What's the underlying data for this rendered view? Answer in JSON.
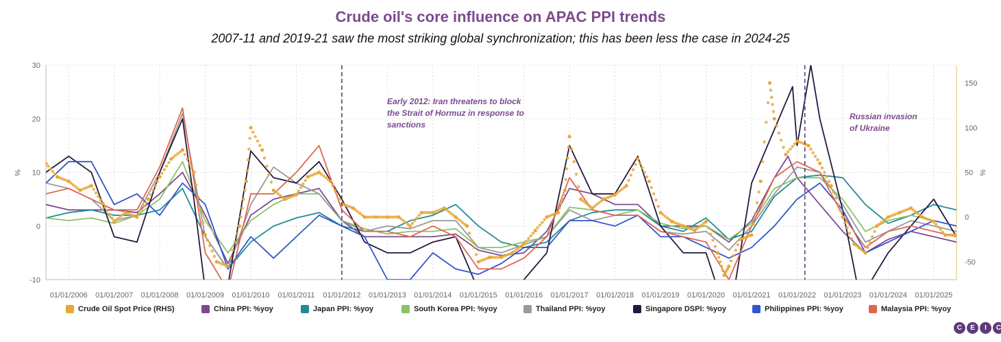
{
  "title": "Crude oil's core influence on APAC PPI trends",
  "subtitle": "2007-11 and 2019-21 saw the most striking global synchronization; this has been less the case in 2024-25",
  "chart_data": {
    "type": "line",
    "left_axis": {
      "unit": "%",
      "range": [
        -10,
        30
      ],
      "ticks": [
        -10,
        0,
        10,
        20,
        30
      ]
    },
    "right_axis": {
      "unit": "%",
      "range": [
        -70,
        170
      ],
      "ticks": [
        -50,
        0,
        50,
        100,
        150
      ]
    },
    "x_range": [
      2005.5,
      2025.5
    ],
    "x_ticks": [
      "01/01/2006",
      "01/01/2007",
      "01/01/2008",
      "01/01/2009",
      "01/01/2010",
      "01/01/2011",
      "01/01/2012",
      "01/01/2013",
      "01/01/2014",
      "01/01/2015",
      "01/01/2016",
      "01/01/2017",
      "01/01/2018",
      "01/01/2019",
      "01/01/2020",
      "01/01/2021",
      "01/01/2022",
      "01/01/2023",
      "01/01/2024",
      "01/01/2025"
    ],
    "grid": true,
    "annotations": [
      {
        "x": 2012.0,
        "text": "Early 2012: Iran threatens to block the Strait of Hormuz in response to sanctions"
      },
      {
        "x": 2022.17,
        "text": "Russian invasion of Ukraine"
      }
    ],
    "series": [
      {
        "name": "Crude Oil Spot Price (RHS)",
        "axis": "right",
        "style": "dots",
        "color": "#e8a838",
        "x": [
          2005.5,
          2005.75,
          2006.0,
          2006.25,
          2006.5,
          2006.75,
          2007.0,
          2007.25,
          2007.5,
          2007.75,
          2008.0,
          2008.25,
          2008.5,
          2008.75,
          2009.0,
          2009.25,
          2009.5,
          2009.75,
          2009.9,
          2010.0,
          2010.25,
          2010.5,
          2010.75,
          2011.0,
          2011.25,
          2011.5,
          2011.75,
          2012.0,
          2012.25,
          2012.5,
          2012.75,
          2013.0,
          2013.25,
          2013.5,
          2013.75,
          2014.0,
          2014.25,
          2014.5,
          2014.75,
          2015.0,
          2015.25,
          2015.5,
          2015.75,
          2016.0,
          2016.25,
          2016.5,
          2016.75,
          2016.9,
          2017.0,
          2017.25,
          2017.5,
          2017.75,
          2018.0,
          2018.25,
          2018.5,
          2018.75,
          2019.0,
          2019.25,
          2019.5,
          2019.75,
          2020.0,
          2020.25,
          2020.4,
          2020.5,
          2020.75,
          2021.0,
          2021.2,
          2021.4,
          2021.5,
          2021.75,
          2022.0,
          2022.25,
          2022.5,
          2022.75,
          2023.0,
          2023.25,
          2023.5,
          2023.75,
          2024.0,
          2024.25,
          2024.5,
          2024.75,
          2025.0,
          2025.25,
          2025.5
        ],
        "values": [
          60,
          45,
          40,
          30,
          35,
          15,
          -5,
          5,
          0,
          20,
          45,
          65,
          75,
          50,
          -20,
          -50,
          -55,
          -10,
          40,
          100,
          75,
          30,
          20,
          25,
          45,
          50,
          40,
          15,
          10,
          0,
          0,
          0,
          0,
          -10,
          5,
          5,
          10,
          0,
          -10,
          -50,
          -45,
          -45,
          -40,
          -30,
          -15,
          0,
          5,
          30,
          90,
          20,
          10,
          20,
          25,
          35,
          65,
          40,
          5,
          -5,
          -10,
          -15,
          -5,
          -40,
          -65,
          -55,
          -25,
          -20,
          40,
          150,
          110,
          70,
          85,
          80,
          60,
          35,
          0,
          -30,
          -40,
          -10,
          0,
          5,
          10,
          0,
          -5,
          -20,
          -20
        ]
      },
      {
        "name": "China PPI: %yoy",
        "axis": "left",
        "style": "line",
        "color": "#7b4a8e",
        "x": [
          2005.5,
          2006.0,
          2006.5,
          2007.0,
          2007.5,
          2008.0,
          2008.5,
          2009.0,
          2009.5,
          2010.0,
          2010.5,
          2011.0,
          2011.5,
          2012.0,
          2012.5,
          2013.0,
          2013.5,
          2014.0,
          2014.5,
          2015.0,
          2015.5,
          2016.0,
          2016.5,
          2017.0,
          2017.5,
          2018.0,
          2018.5,
          2019.0,
          2019.5,
          2020.0,
          2020.5,
          2021.0,
          2021.5,
          2021.8,
          2022.0,
          2022.5,
          2023.0,
          2023.5,
          2024.0,
          2024.5,
          2025.0,
          2025.5
        ],
        "values": [
          4,
          3,
          3,
          3,
          2.5,
          6,
          10,
          2,
          -7,
          2,
          5,
          6,
          7,
          1,
          -2,
          -2,
          -2,
          -2,
          -1.5,
          -4.5,
          -5.5,
          -5,
          -1,
          7,
          6,
          4,
          4,
          0,
          0,
          0,
          -3,
          1,
          9,
          13,
          9,
          4,
          -1,
          -5,
          -2.5,
          -1,
          -2,
          -3
        ]
      },
      {
        "name": "Japan PPI: %yoy",
        "axis": "left",
        "style": "line",
        "color": "#1f8a95",
        "x": [
          2005.5,
          2006.0,
          2006.5,
          2007.0,
          2007.5,
          2008.0,
          2008.5,
          2009.0,
          2009.5,
          2010.0,
          2010.5,
          2011.0,
          2011.5,
          2012.0,
          2012.5,
          2013.0,
          2013.5,
          2014.0,
          2014.5,
          2015.0,
          2015.5,
          2016.0,
          2016.5,
          2017.0,
          2017.5,
          2018.0,
          2018.5,
          2019.0,
          2019.5,
          2020.0,
          2020.5,
          2021.0,
          2021.5,
          2022.0,
          2022.5,
          2023.0,
          2023.5,
          2024.0,
          2024.5,
          2025.0,
          2025.5
        ],
        "values": [
          1.5,
          2.5,
          3,
          2,
          2,
          3,
          7,
          -2,
          -8,
          -3,
          0,
          1.5,
          2.5,
          0,
          -1,
          -1,
          1,
          2,
          4,
          0,
          -3,
          -4,
          -3,
          1,
          2.5,
          3,
          3,
          0,
          -1,
          1.5,
          -2.5,
          -1,
          5.5,
          9,
          9.5,
          9,
          4,
          0.5,
          2,
          4,
          3
        ]
      },
      {
        "name": "South Korea PPI: %yoy",
        "axis": "left",
        "style": "line",
        "color": "#8cc265",
        "x": [
          2005.5,
          2006.0,
          2006.5,
          2007.0,
          2007.5,
          2008.0,
          2008.5,
          2009.0,
          2009.5,
          2010.0,
          2010.5,
          2011.0,
          2011.5,
          2012.0,
          2012.5,
          2013.0,
          2013.5,
          2014.0,
          2014.5,
          2015.0,
          2015.5,
          2016.0,
          2016.5,
          2017.0,
          2017.5,
          2018.0,
          2018.5,
          2019.0,
          2019.5,
          2020.0,
          2020.5,
          2021.0,
          2021.5,
          2022.0,
          2022.5,
          2023.0,
          2023.5,
          2024.0,
          2024.5,
          2025.0,
          2025.5
        ],
        "values": [
          1.5,
          1,
          1.5,
          0.5,
          2,
          5,
          12,
          1,
          -5,
          1,
          4,
          6,
          6,
          1,
          -0.5,
          -1.5,
          -1,
          -1,
          -0.5,
          -4,
          -4,
          -3,
          -2,
          3.5,
          3,
          2,
          3,
          0.5,
          -0.5,
          0,
          -2.5,
          0.5,
          7,
          9,
          9,
          5,
          -1,
          1,
          2,
          1,
          0
        ]
      },
      {
        "name": "Thailand PPI: %yoy",
        "axis": "left",
        "style": "line",
        "color": "#999999",
        "x": [
          2005.5,
          2006.0,
          2006.5,
          2007.0,
          2007.5,
          2008.0,
          2008.5,
          2009.0,
          2009.5,
          2010.0,
          2010.5,
          2011.0,
          2011.5,
          2012.0,
          2012.5,
          2013.0,
          2013.5,
          2014.0,
          2014.5,
          2015.0,
          2015.5,
          2016.0,
          2016.5,
          2017.0,
          2017.5,
          2018.0,
          2018.5,
          2019.0,
          2019.5,
          2020.0,
          2020.5,
          2021.0,
          2021.5,
          2022.0,
          2022.5,
          2023.0,
          2023.5,
          2024.0,
          2024.5,
          2025.0,
          2025.5
        ],
        "values": [
          8,
          7,
          5,
          1,
          2,
          10,
          21,
          -2,
          -8,
          4,
          11,
          8,
          6,
          1,
          -1,
          0,
          -0.5,
          1,
          1,
          -4,
          -5,
          -3.5,
          -2,
          3,
          1,
          2,
          2,
          -1,
          -1.5,
          -1,
          -4.5,
          0,
          6,
          11,
          10,
          4,
          -3,
          -1,
          1,
          0,
          -1
        ]
      },
      {
        "name": "Singapore DSPI: %yoy",
        "axis": "left",
        "style": "line",
        "color": "#231a3d",
        "x": [
          2005.5,
          2006.0,
          2006.5,
          2007.0,
          2007.5,
          2008.0,
          2008.5,
          2008.75,
          2009.0,
          2009.5,
          2010.0,
          2010.5,
          2011.0,
          2011.5,
          2012.0,
          2012.5,
          2013.0,
          2013.5,
          2014.0,
          2014.5,
          2015.0,
          2015.5,
          2016.0,
          2016.5,
          2017.0,
          2017.5,
          2018.0,
          2018.5,
          2019.0,
          2019.5,
          2020.0,
          2020.5,
          2021.0,
          2021.5,
          2021.9,
          2022.0,
          2022.3,
          2022.5,
          2023.0,
          2023.3,
          2023.5,
          2024.0,
          2024.5,
          2025.0,
          2025.5
        ],
        "values": [
          10,
          13,
          10,
          -2,
          -3,
          10,
          20,
          5,
          -12,
          -11,
          14,
          9,
          8,
          12,
          5,
          -3,
          -5,
          -5,
          -3,
          -2,
          -12,
          -13,
          -10,
          -5,
          15,
          6,
          6,
          13,
          0,
          -5,
          -5,
          -18,
          8,
          18,
          26,
          15,
          30,
          20,
          3,
          -10,
          -12,
          -5,
          0,
          5,
          -2
        ]
      },
      {
        "name": "Philippines PPI: %yoy",
        "axis": "left",
        "style": "line",
        "color": "#3355cc",
        "x": [
          2005.5,
          2006.0,
          2006.5,
          2007.0,
          2007.5,
          2008.0,
          2008.5,
          2009.0,
          2009.5,
          2010.0,
          2010.5,
          2011.0,
          2011.5,
          2012.0,
          2012.5,
          2013.0,
          2013.5,
          2014.0,
          2014.5,
          2015.0,
          2015.5,
          2016.0,
          2016.5,
          2017.0,
          2017.5,
          2018.0,
          2018.5,
          2019.0,
          2019.5,
          2020.0,
          2020.5,
          2021.0,
          2021.5,
          2022.0,
          2022.5,
          2023.0,
          2023.5,
          2024.0,
          2024.5,
          2025.0,
          2025.5
        ],
        "values": [
          8,
          12,
          12,
          4,
          6,
          2,
          8,
          4,
          -8,
          -2,
          -6,
          -2,
          2,
          0,
          -2,
          -10,
          -10,
          -5,
          -8,
          -9,
          -7,
          -4,
          -4,
          1,
          1,
          0,
          2,
          -2,
          -2,
          -4,
          -6,
          -4,
          0,
          5,
          8,
          3,
          -5,
          -3,
          -1,
          1,
          0
        ]
      },
      {
        "name": "Malaysia PPI: %yoy",
        "axis": "left",
        "style": "line",
        "color": "#e06650",
        "x": [
          2005.5,
          2006.0,
          2006.5,
          2007.0,
          2007.5,
          2008.0,
          2008.5,
          2009.0,
          2009.5,
          2010.0,
          2010.5,
          2011.0,
          2011.5,
          2012.0,
          2012.5,
          2013.0,
          2013.5,
          2014.0,
          2014.5,
          2015.0,
          2015.5,
          2016.0,
          2016.5,
          2017.0,
          2017.5,
          2018.0,
          2018.5,
          2019.0,
          2019.5,
          2020.0,
          2020.5,
          2021.0,
          2021.5,
          2022.0,
          2022.5,
          2023.0,
          2023.5,
          2024.0,
          2024.5,
          2025.0,
          2025.5
        ],
        "values": [
          6,
          7,
          5,
          3,
          3,
          11,
          22,
          -5,
          -12,
          6,
          6,
          10,
          15,
          3,
          -1,
          -1,
          -2,
          0,
          -2,
          -8,
          -8,
          -6,
          -2,
          9,
          3,
          2,
          2,
          -1,
          -2,
          -3,
          -10,
          0,
          9,
          12,
          10,
          2,
          -4,
          -1,
          0,
          -1,
          -2
        ]
      }
    ]
  },
  "legend": [
    {
      "label": "Crude Oil Spot Price (RHS)",
      "color": "#e8a838"
    },
    {
      "label": "China PPI: %yoy",
      "color": "#7b4a8e"
    },
    {
      "label": "Japan PPI: %yoy",
      "color": "#1f8a95"
    },
    {
      "label": "South Korea PPI: %yoy",
      "color": "#8cc265"
    },
    {
      "label": "Thailand PPI: %yoy",
      "color": "#999999"
    },
    {
      "label": "Singapore DSPI: %yoy",
      "color": "#231a3d"
    },
    {
      "label": "Philippines PPI: %yoy",
      "color": "#3355cc"
    },
    {
      "label": "Malaysia PPI: %yoy",
      "color": "#e06650"
    }
  ],
  "annotations": {
    "hormuz": [
      "Early 2012: Iran threatens to block",
      "the Strait of Hormuz in response to",
      "sanctions"
    ],
    "ukraine": [
      "Russian invasion",
      "of Ukraine"
    ]
  },
  "logo_letters": [
    "C",
    "E",
    "I",
    "C"
  ],
  "accent_color": "#7b4a8e"
}
